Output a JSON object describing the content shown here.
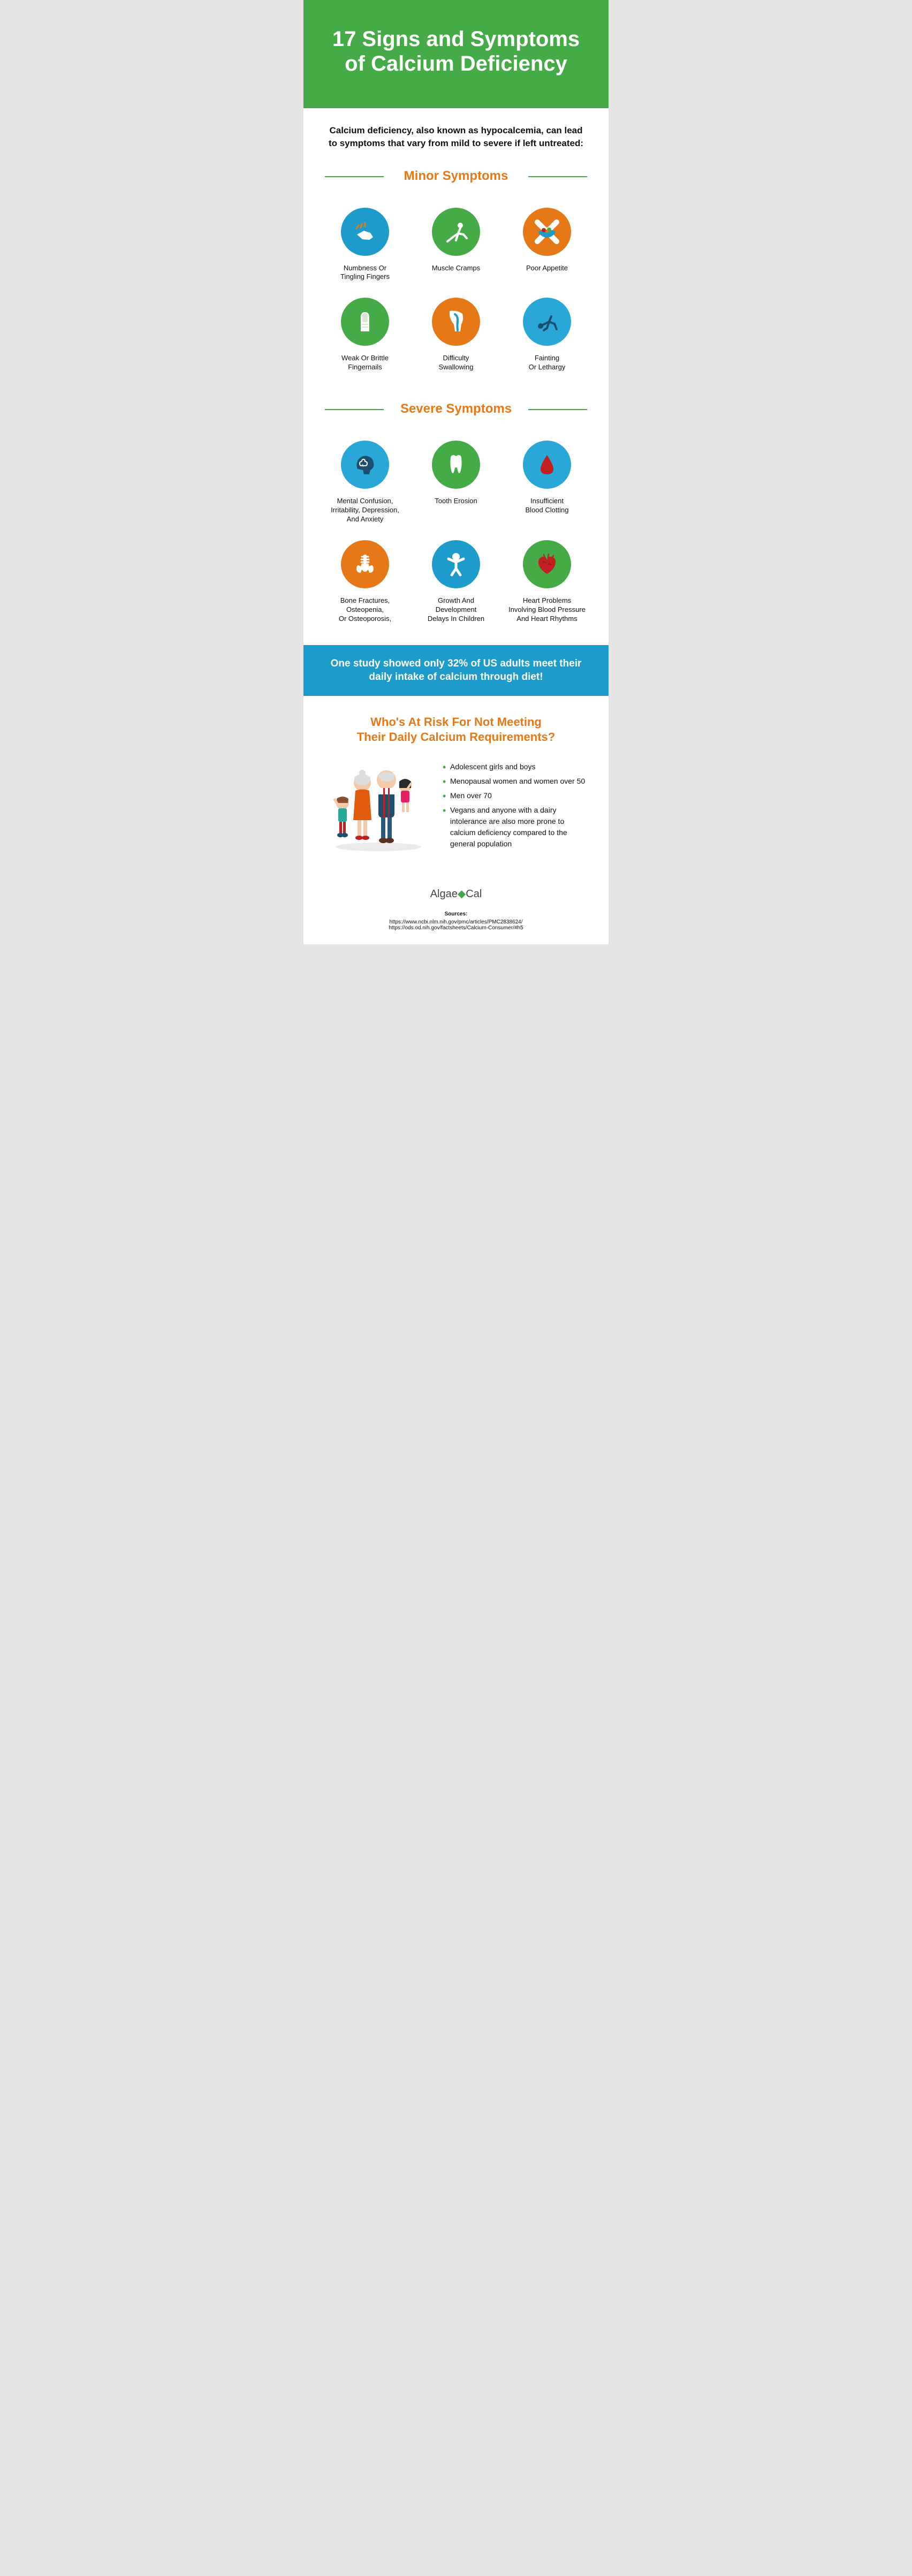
{
  "colors": {
    "green": "#45ab47",
    "orange": "#e67817",
    "darkOrange": "#e25c0e",
    "blue": "#1d9bca",
    "lightBlue": "#29a8d8",
    "darkRed": "#c02020",
    "white": "#ffffff",
    "text": "#111111"
  },
  "hero": {
    "title": "17 Signs and Symptoms\nof Calcium Deficiency"
  },
  "intro": "Calcium deficiency, also known as hypocalcemia, can lead to symptoms that vary from mild to severe if left untreated:",
  "sections": {
    "minor": {
      "title": "Minor Symptoms",
      "items": [
        {
          "label": "Numbness Or\nTingling Fingers",
          "bg": "#1d9bca",
          "icon": "hand"
        },
        {
          "label": "Muscle Cramps",
          "bg": "#45ab47",
          "icon": "stretch"
        },
        {
          "label": "Poor Appetite",
          "bg": "#e67817",
          "icon": "bowl"
        },
        {
          "label": "Weak Or Brittle\nFingernails",
          "bg": "#45ab47",
          "icon": "nail"
        },
        {
          "label": "Difficulty\nSwallowing",
          "bg": "#e67817",
          "icon": "throat"
        },
        {
          "label": "Fainting\nOr Lethargy",
          "bg": "#29a8d8",
          "icon": "faint"
        }
      ]
    },
    "severe": {
      "title": "Severe Symptoms",
      "items": [
        {
          "label": "Mental Confusion,\nIrritability, Depression,\nAnd Anxiety",
          "bg": "#29a8d8",
          "icon": "brain"
        },
        {
          "label": "Tooth Erosion",
          "bg": "#45ab47",
          "icon": "tooth"
        },
        {
          "label": "Insufficient\nBlood Clotting",
          "bg": "#29a8d8",
          "icon": "drop"
        },
        {
          "label": "Bone Fractures,\nOsteopenia,\nOr Osteoporosis,",
          "bg": "#e67817",
          "icon": "bones"
        },
        {
          "label": "Growth And\nDevelopment\nDelays In Children",
          "bg": "#1d9bca",
          "icon": "child"
        },
        {
          "label": "Heart Problems\nInvolving Blood Pressure\nAnd Heart Rhythms",
          "bg": "#45ab47",
          "icon": "heart"
        }
      ]
    }
  },
  "banner": "One study showed only 32% of US adults meet their daily intake of calcium through diet!",
  "risk": {
    "title": "Who's At Risk For Not Meeting\nTheir Daily Calcium Requirements?",
    "items": [
      "Adolescent girls and boys",
      "Menopausal women and women over 50",
      "Men over 70",
      "Vegans and anyone with a dairy intolerance are also more prone to calcium deficiency compared to the general population"
    ]
  },
  "brand": "AlgaeCal",
  "sources": {
    "label": "Sources:",
    "urls": [
      "https://www.ncbi.nlm.nih.gov/pmc/articles/PMC2838624/",
      "https://ods.od.nih.gov/factsheets/Calcium-Consumer/#h5"
    ]
  }
}
